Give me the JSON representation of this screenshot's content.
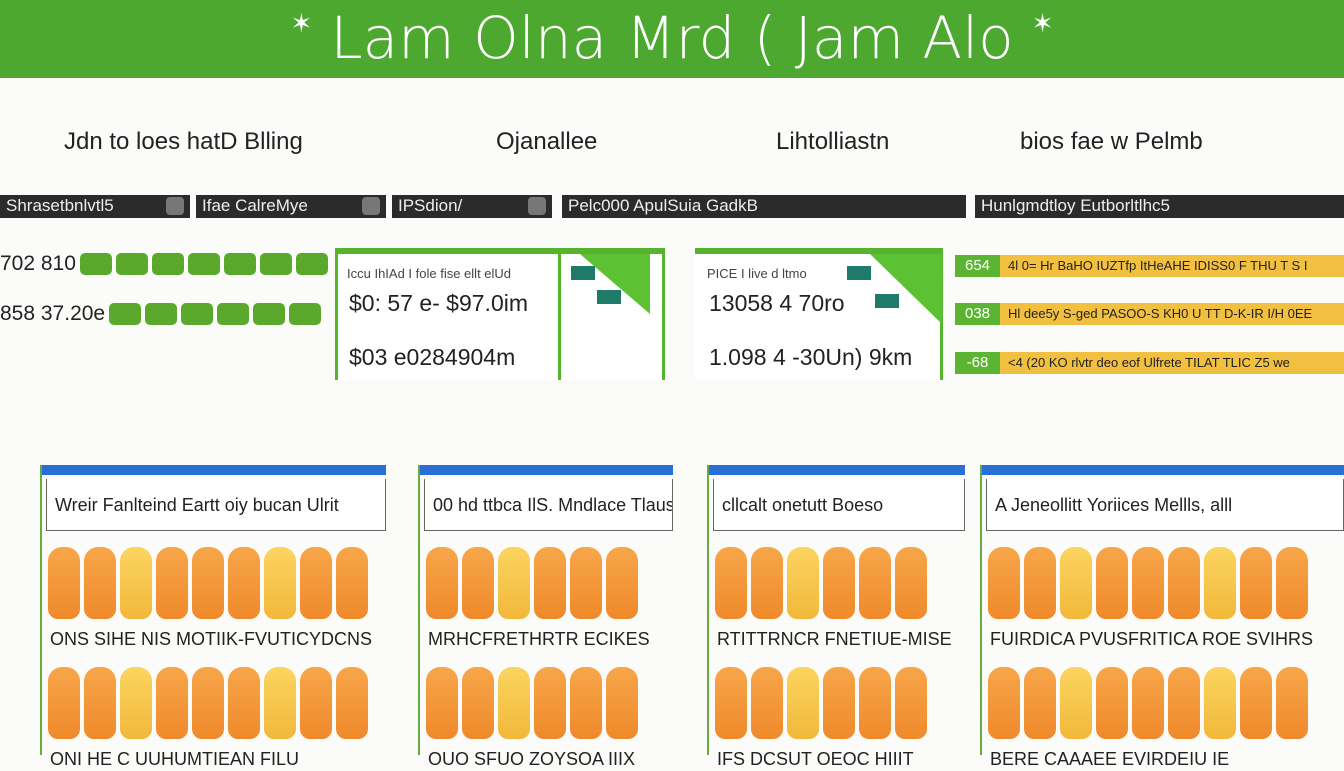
{
  "header": {
    "title": "Lam Olna Mrd ( Jam Alo",
    "bg": "#4ca82e"
  },
  "columns": [
    "Jdn to loes hatD Blling",
    "Ojanallee",
    "Lihtolliastn",
    "bios fae w Pelmb"
  ],
  "dark_bars": [
    "Shrasetbnlvtl5",
    "Ifae CalreMye",
    "IPSdion/",
    "Pelc000  ApulSuia  GadkB",
    "Hunlgmdtloy Eutborltlhc5"
  ],
  "left_list": [
    {
      "value": "702 810"
    },
    {
      "value": "858 37.20e"
    }
  ],
  "cards": [
    {
      "caption": "Iccu IhIAd I fole fise ellt elUd",
      "value1": "$0: 57 e- $97.0im",
      "value2": "$03 e0284904m"
    },
    {
      "caption": "PICE I live d ltmo",
      "value1": "13058 4 70ro",
      "value2": "1.098 4 -30Un) 9km"
    }
  ],
  "yellow_bars": [
    {
      "badge": "654",
      "text": "4l 0= Hr BaHO IUZTfp ItHeAHE IDISS0 F THU  T S I"
    },
    {
      "badge": "038",
      "text": "Hl dee5y S-ged PASOO-S KH0 U TT D-K-IR I/H 0EE"
    },
    {
      "badge": "-68",
      "text": "<4 (20 KO rlvtr deo eof Ulfrete TILAT TLIC Z5 we"
    }
  ],
  "panels": [
    {
      "title": "Wreir Fanlteind Eartt oiy bucan Ulrit",
      "row1": "ONS SIHE NIS MOTIIK-FVUTICYDCNS",
      "row2": "ONI HE C  UUHUMTIEAN FILU"
    },
    {
      "title": "00 hd ttbca IlS. Mndlace Tlaus",
      "row1": "MRHCFRETHRTR ECIKES",
      "row2": "OUO SFUO ZOYSOA IIIX"
    },
    {
      "title": "cllcalt onetutt Boeso",
      "row1": "RTITTRNCR FNETIUE-MISE",
      "row2": "IFS DCSUT OEOC HIIIT"
    },
    {
      "title": "A Jeneollitt Yoriices Mellls, alll",
      "row1": "FUIRDICA PVUSFRITICA ROE SVIHRS",
      "row2": "BERE CAAAEE EVIRDEIU IE"
    }
  ],
  "colors": {
    "green": "#55b32e",
    "yellow": "#f2c040",
    "orange": "#ef8a2a",
    "blue": "#2a6fd6",
    "dark": "#2b2b2b"
  }
}
